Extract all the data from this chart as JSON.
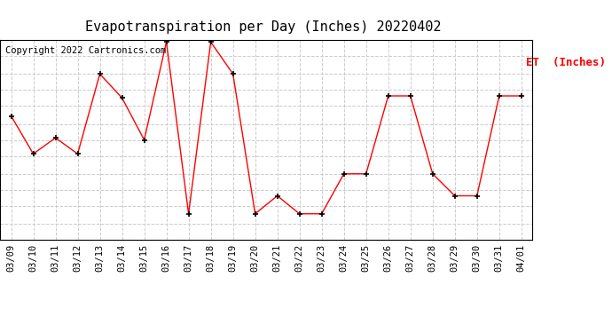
{
  "title": "Evapotranspiration per Day (Inches) 20220402",
  "copyright_text": "Copyright 2022 Cartronics.com",
  "legend_label": "ET  (Inches)",
  "dates": [
    "03/09",
    "03/10",
    "03/11",
    "03/12",
    "03/13",
    "03/14",
    "03/15",
    "03/16",
    "03/17",
    "03/18",
    "03/19",
    "03/20",
    "03/21",
    "03/22",
    "03/23",
    "03/24",
    "03/25",
    "03/26",
    "03/27",
    "03/28",
    "03/29",
    "03/30",
    "03/31",
    "04/01"
  ],
  "values": [
    0.062,
    0.043,
    0.051,
    0.043,
    0.083,
    0.071,
    0.05,
    0.099,
    0.013,
    0.099,
    0.083,
    0.013,
    0.022,
    0.013,
    0.013,
    0.033,
    0.033,
    0.072,
    0.072,
    0.033,
    0.022,
    0.022,
    0.072,
    0.072
  ],
  "ylim": [
    0.0,
    0.1
  ],
  "yticks": [
    0.0,
    0.008,
    0.017,
    0.025,
    0.033,
    0.042,
    0.05,
    0.058,
    0.067,
    0.075,
    0.083,
    0.092,
    0.1
  ],
  "line_color": "red",
  "marker": "+",
  "marker_color": "black",
  "grid_color": "#cccccc",
  "bg_color": "#ffffff",
  "title_fontsize": 11,
  "copyright_fontsize": 7.5,
  "legend_fontsize": 9,
  "axis_tick_fontsize": 7.5
}
